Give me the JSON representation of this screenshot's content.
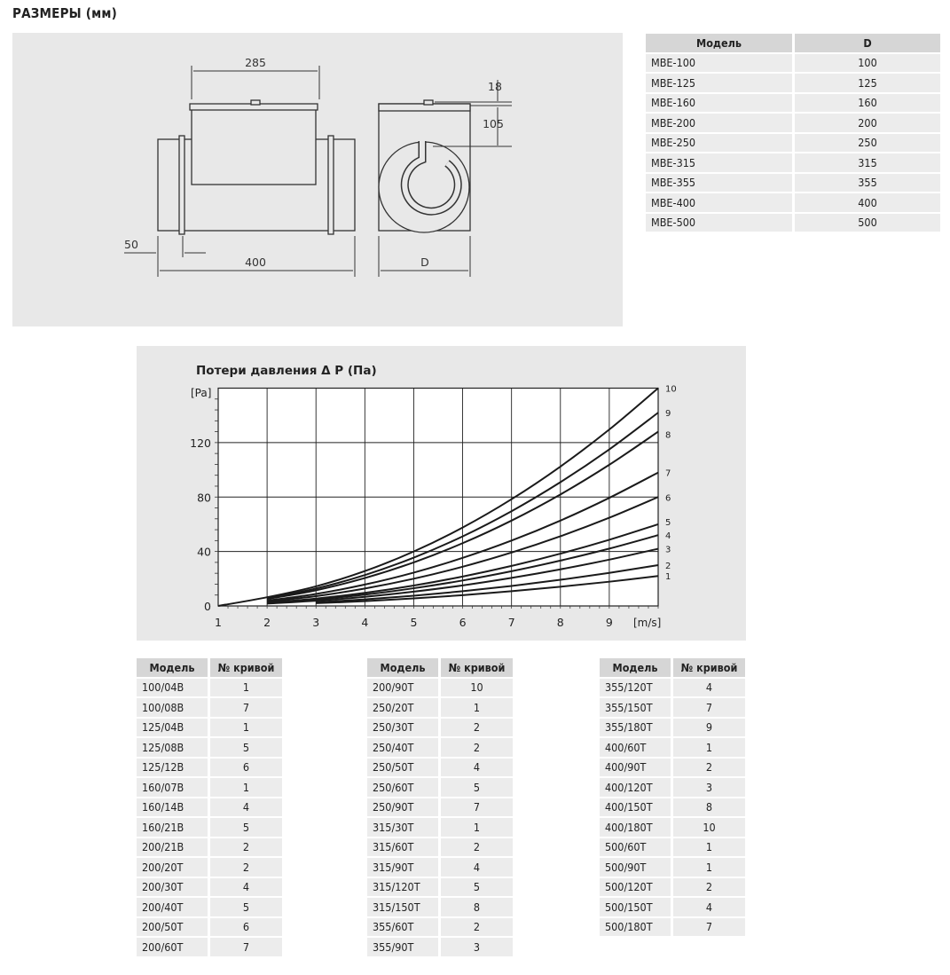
{
  "title": "РАЗМЕРЫ (мм)",
  "drawing": {
    "dim_width_box": "285",
    "dim_top": "18",
    "dim_box_height": "105",
    "dim_socket": "50",
    "dim_length": "400",
    "dim_diameter": "D"
  },
  "size_table": {
    "headers": [
      "Модель",
      "D"
    ],
    "rows": [
      [
        "MBE-100",
        "100"
      ],
      [
        "MBE-125",
        "125"
      ],
      [
        "MBE-160",
        "160"
      ],
      [
        "MBE-200",
        "200"
      ],
      [
        "MBE-250",
        "250"
      ],
      [
        "MBE-315",
        "315"
      ],
      [
        "MBE-355",
        "355"
      ],
      [
        "MBE-400",
        "400"
      ],
      [
        "MBE-500",
        "500"
      ]
    ]
  },
  "chart_data": {
    "type": "line",
    "title": "Потери давления Δ P  (Па)",
    "xlabel": "[m/s]",
    "ylabel": "[Pa]",
    "xlim": [
      1,
      10
    ],
    "ylim": [
      0,
      160
    ],
    "x_ticks": [
      "1",
      "2",
      "3",
      "4",
      "5",
      "6",
      "7",
      "8",
      "9"
    ],
    "y_ticks": [
      "0",
      "40",
      "80",
      "120"
    ],
    "grid": true,
    "x": [
      1,
      2,
      3,
      4,
      5,
      6,
      7,
      8,
      9,
      10
    ],
    "series": [
      {
        "name": "1",
        "values": [
          null,
          null,
          2.0,
          3.5,
          5.5,
          7.9,
          10.8,
          14.1,
          17.8,
          22
        ]
      },
      {
        "name": "2",
        "values": [
          null,
          null,
          2.7,
          4.8,
          7.5,
          10.8,
          14.7,
          19.2,
          24.3,
          30
        ]
      },
      {
        "name": "3",
        "values": [
          null,
          1.7,
          3.8,
          6.7,
          10.5,
          15.1,
          20.6,
          26.9,
          34.0,
          42
        ]
      },
      {
        "name": "4",
        "values": [
          null,
          2.1,
          4.7,
          8.3,
          13,
          18.7,
          25.5,
          33.3,
          42.1,
          52
        ]
      },
      {
        "name": "5",
        "values": [
          null,
          2.4,
          5.4,
          9.6,
          15,
          21.6,
          29.4,
          38.4,
          48.6,
          60
        ]
      },
      {
        "name": "6",
        "values": [
          null,
          3.2,
          7.2,
          12.8,
          20,
          28.8,
          39.2,
          51.2,
          64.8,
          80
        ]
      },
      {
        "name": "7",
        "values": [
          null,
          3.9,
          8.8,
          15.7,
          24.5,
          35.3,
          48,
          62.7,
          79.4,
          98
        ]
      },
      {
        "name": "8",
        "values": [
          null,
          5.1,
          11.5,
          20.5,
          32,
          46.1,
          62.7,
          81.9,
          103.7,
          128
        ]
      },
      {
        "name": "9",
        "values": [
          null,
          5.7,
          12.8,
          22.7,
          35.5,
          51.1,
          69.6,
          90.9,
          115,
          142
        ]
      },
      {
        "name": "10",
        "values": [
          0,
          6.4,
          14.4,
          25.6,
          40,
          57.6,
          78.4,
          102.4,
          129.6,
          160
        ]
      }
    ]
  },
  "curve_tables": [
    {
      "headers": [
        "Модель",
        "№ кривой"
      ],
      "rows": [
        [
          "100/04B",
          "1"
        ],
        [
          "100/08B",
          "7"
        ],
        [
          "125/04B",
          "1"
        ],
        [
          "125/08B",
          "5"
        ],
        [
          "125/12B",
          "6"
        ],
        [
          "160/07B",
          "1"
        ],
        [
          "160/14B",
          "4"
        ],
        [
          "160/21B",
          "5"
        ],
        [
          "200/21B",
          "2"
        ],
        [
          "200/20T",
          "2"
        ],
        [
          "200/30T",
          "4"
        ],
        [
          "200/40T",
          "5"
        ],
        [
          "200/50T",
          "6"
        ],
        [
          "200/60T",
          "7"
        ]
      ]
    },
    {
      "headers": [
        "Модель",
        "№ кривой"
      ],
      "rows": [
        [
          "200/90T",
          "10"
        ],
        [
          "250/20T",
          "1"
        ],
        [
          "250/30T",
          "2"
        ],
        [
          "250/40T",
          "2"
        ],
        [
          "250/50T",
          "4"
        ],
        [
          "250/60T",
          "5"
        ],
        [
          "250/90T",
          "7"
        ],
        [
          "315/30T",
          "1"
        ],
        [
          "315/60T",
          "2"
        ],
        [
          "315/90T",
          "4"
        ],
        [
          "315/120T",
          "5"
        ],
        [
          "315/150T",
          "8"
        ],
        [
          "355/60T",
          "2"
        ],
        [
          "355/90T",
          "3"
        ]
      ]
    },
    {
      "headers": [
        "Модель",
        "№ кривой"
      ],
      "rows": [
        [
          "355/120T",
          "4"
        ],
        [
          "355/150T",
          "7"
        ],
        [
          "355/180T",
          "9"
        ],
        [
          "400/60T",
          "1"
        ],
        [
          "400/90T",
          "2"
        ],
        [
          "400/120T",
          "3"
        ],
        [
          "400/150T",
          "8"
        ],
        [
          "400/180T",
          "10"
        ],
        [
          "500/60T",
          "1"
        ],
        [
          "500/90T",
          "1"
        ],
        [
          "500/120T",
          "2"
        ],
        [
          "500/150T",
          "4"
        ],
        [
          "500/180T",
          "7"
        ]
      ]
    }
  ]
}
